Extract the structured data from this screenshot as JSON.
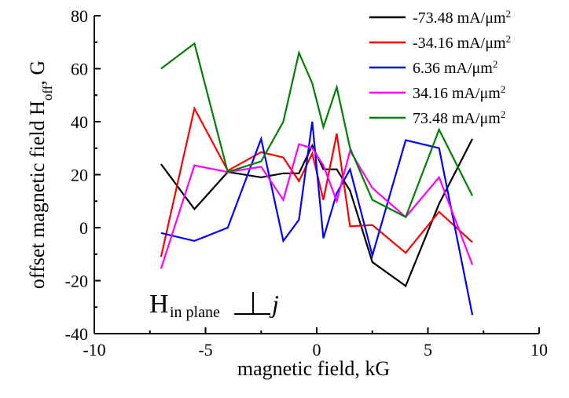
{
  "chart_data": {
    "type": "line",
    "xlabel": "magnetic field, kG",
    "ylabel": "offset magnetic field H",
    "ylabel_sub": "off",
    "ylabel_tail": ", G",
    "xlim": [
      -10,
      10
    ],
    "ylim": [
      -40,
      80
    ],
    "xticks": [
      -10,
      -5,
      0,
      5,
      10
    ],
    "yticks": [
      -40,
      -20,
      0,
      20,
      40,
      60,
      80
    ],
    "grid": false,
    "legend_position": "top-right",
    "annotation": {
      "main": "H",
      "sub": "in plane",
      "tail": "j"
    },
    "series": [
      {
        "name": "-73.48 mA/μm",
        "sup": "2",
        "color": "#000000",
        "x": [
          -7,
          -5.5,
          -4,
          -2.5,
          -1.5,
          -0.8,
          -0.2,
          0.3,
          0.9,
          1.5,
          2.5,
          4,
          5.5,
          7
        ],
        "y": [
          24,
          7,
          21,
          19,
          20.5,
          20.5,
          31,
          22,
          22,
          14,
          -13,
          -22,
          9,
          33.5
        ]
      },
      {
        "name": "-34.16 mA/μm",
        "sup": "2",
        "color": "#ff0000",
        "x": [
          -7,
          -5.5,
          -4,
          -2.5,
          -1.5,
          -0.8,
          -0.2,
          0.3,
          0.9,
          1.5,
          2.5,
          4,
          5.5,
          7
        ],
        "y": [
          -11,
          45,
          21.5,
          28.5,
          26.5,
          17.5,
          28,
          10.5,
          35.5,
          0.5,
          1,
          -9.5,
          6,
          -5.5
        ]
      },
      {
        "name": "6.36 mA/μm",
        "sup": "2",
        "color": "#0000ff",
        "x": [
          -7,
          -5.5,
          -4,
          -2.5,
          -1.5,
          -0.8,
          -0.2,
          0.3,
          0.9,
          1.5,
          2.5,
          4,
          5.5,
          7
        ],
        "y": [
          -2,
          -5,
          0,
          33.5,
          -5,
          3,
          40,
          -4,
          13,
          22,
          -10.5,
          33,
          30,
          -33
        ]
      },
      {
        "name": "34.16 mA/μm",
        "sup": "2",
        "color": "#ff00ff",
        "x": [
          -7,
          -5.5,
          -4,
          -2.5,
          -1.5,
          -0.8,
          -0.2,
          0.3,
          0.9,
          1.5,
          2.5,
          4,
          5.5,
          7
        ],
        "y": [
          -15.5,
          23.5,
          21,
          23,
          10.5,
          31.5,
          30,
          23.5,
          10,
          29,
          15,
          4,
          19,
          -14
        ]
      },
      {
        "name": "73.48 mA/μm",
        "sup": "2",
        "color": "#008000",
        "x": [
          -7,
          -5.5,
          -4,
          -2.5,
          -1.5,
          -0.8,
          -0.2,
          0.3,
          0.9,
          1.5,
          2.5,
          4,
          5.5,
          7
        ],
        "y": [
          60,
          69.5,
          21,
          25,
          40,
          66,
          54.5,
          38,
          53,
          30,
          10.5,
          4,
          37,
          12
        ]
      }
    ]
  }
}
